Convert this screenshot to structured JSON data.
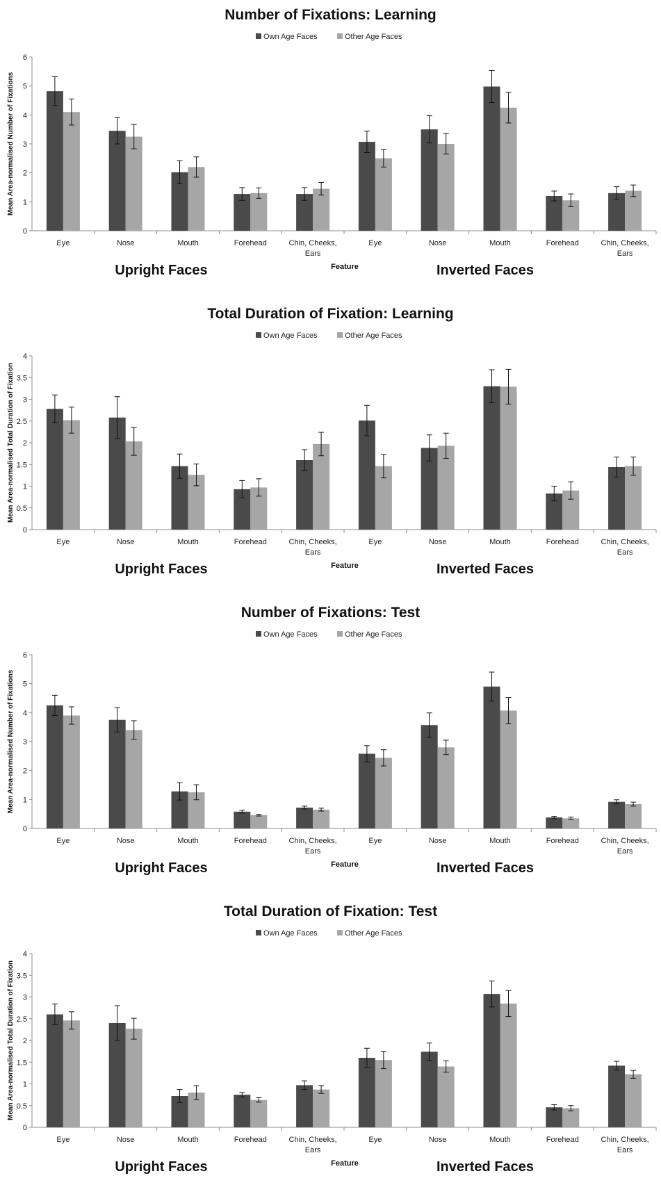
{
  "legend": {
    "own": "Own Age Faces",
    "other": "Other Age Faces"
  },
  "colors": {
    "own": "#4a4a4a",
    "other": "#a6a6a6"
  },
  "categories": [
    "Eye",
    "Nose",
    "Mouth",
    "Forehead",
    "Chin, Cheeks, Ears",
    "Eye",
    "Nose",
    "Mouth",
    "Forehead",
    "Chin, Cheeks, Ears"
  ],
  "chart_data": [
    {
      "type": "bar",
      "title": "Number of Fixations: Learning",
      "xlabel": "Feature",
      "ylabel": "Mean Area-normalised Number of Fixations",
      "group_labels": [
        "Upright Faces",
        "Inverted Faces"
      ],
      "ylim": [
        0,
        6
      ],
      "yticks": [
        0,
        1,
        2,
        3,
        4,
        5,
        6
      ],
      "series": [
        {
          "name": "Own Age Faces",
          "values": [
            4.82,
            3.45,
            2.02,
            1.27,
            1.27,
            3.07,
            3.5,
            4.98,
            1.2,
            1.3
          ],
          "errors": [
            0.5,
            0.45,
            0.4,
            0.22,
            0.22,
            0.37,
            0.47,
            0.55,
            0.17,
            0.22
          ]
        },
        {
          "name": "Other Age Faces",
          "values": [
            4.1,
            3.25,
            2.2,
            1.3,
            1.45,
            2.5,
            3.0,
            4.25,
            1.05,
            1.38
          ],
          "errors": [
            0.45,
            0.42,
            0.35,
            0.18,
            0.22,
            0.3,
            0.35,
            0.53,
            0.22,
            0.2
          ]
        }
      ]
    },
    {
      "type": "bar",
      "title": "Total Duration of Fixation: Learning",
      "xlabel": "Feature",
      "ylabel": "Mean Area-normalised Total Duration of Fixation",
      "group_labels": [
        "Upright Faces",
        "Inverted Faces"
      ],
      "ylim": [
        0,
        4
      ],
      "yticks": [
        0,
        0.5,
        1,
        1.5,
        2,
        2.5,
        3,
        3.5,
        4
      ],
      "series": [
        {
          "name": "Own Age Faces",
          "values": [
            2.78,
            2.58,
            1.46,
            0.93,
            1.6,
            2.51,
            1.88,
            3.3,
            0.83,
            1.44
          ],
          "errors": [
            0.32,
            0.48,
            0.28,
            0.2,
            0.24,
            0.35,
            0.3,
            0.38,
            0.17,
            0.23
          ]
        },
        {
          "name": "Other Age Faces",
          "values": [
            2.52,
            2.03,
            1.26,
            0.97,
            1.97,
            1.46,
            1.93,
            3.29,
            0.9,
            1.46
          ],
          "errors": [
            0.3,
            0.32,
            0.25,
            0.2,
            0.27,
            0.27,
            0.29,
            0.4,
            0.2,
            0.21
          ]
        }
      ]
    },
    {
      "type": "bar",
      "title": "Number of Fixations: Test",
      "xlabel": "Feature",
      "ylabel": "Mean Area-normalised Number of Fixations",
      "group_labels": [
        "Upright Faces",
        "Inverted Faces"
      ],
      "ylim": [
        0,
        6
      ],
      "yticks": [
        0,
        1,
        2,
        3,
        4,
        5,
        6
      ],
      "series": [
        {
          "name": "Own Age Faces",
          "values": [
            4.25,
            3.75,
            1.28,
            0.58,
            0.72,
            2.58,
            3.57,
            4.9,
            0.38,
            0.92
          ],
          "errors": [
            0.35,
            0.42,
            0.3,
            0.05,
            0.05,
            0.28,
            0.42,
            0.5,
            0.04,
            0.07
          ]
        },
        {
          "name": "Other Age Faces",
          "values": [
            3.9,
            3.4,
            1.25,
            0.46,
            0.65,
            2.44,
            2.8,
            4.07,
            0.35,
            0.84
          ],
          "errors": [
            0.3,
            0.32,
            0.26,
            0.03,
            0.05,
            0.28,
            0.25,
            0.45,
            0.04,
            0.07
          ]
        }
      ]
    },
    {
      "type": "bar",
      "title": "Total Duration of Fixation: Test",
      "xlabel": "Feature",
      "ylabel": "Mean Area-normalised Total Duration of Fixation",
      "group_labels": [
        "Upright Faces",
        "Inverted Faces"
      ],
      "ylim": [
        0,
        4
      ],
      "yticks": [
        0,
        0.5,
        1,
        1.5,
        2,
        2.5,
        3,
        3.5,
        4
      ],
      "series": [
        {
          "name": "Own Age Faces",
          "values": [
            2.6,
            2.4,
            0.72,
            0.75,
            0.97,
            1.6,
            1.74,
            3.07,
            0.46,
            1.42
          ],
          "errors": [
            0.24,
            0.4,
            0.15,
            0.05,
            0.1,
            0.22,
            0.2,
            0.3,
            0.06,
            0.1
          ]
        },
        {
          "name": "Other Age Faces",
          "values": [
            2.46,
            2.27,
            0.8,
            0.63,
            0.87,
            1.55,
            1.4,
            2.85,
            0.44,
            1.22
          ],
          "errors": [
            0.2,
            0.24,
            0.16,
            0.05,
            0.09,
            0.2,
            0.13,
            0.3,
            0.06,
            0.09
          ]
        }
      ]
    }
  ]
}
